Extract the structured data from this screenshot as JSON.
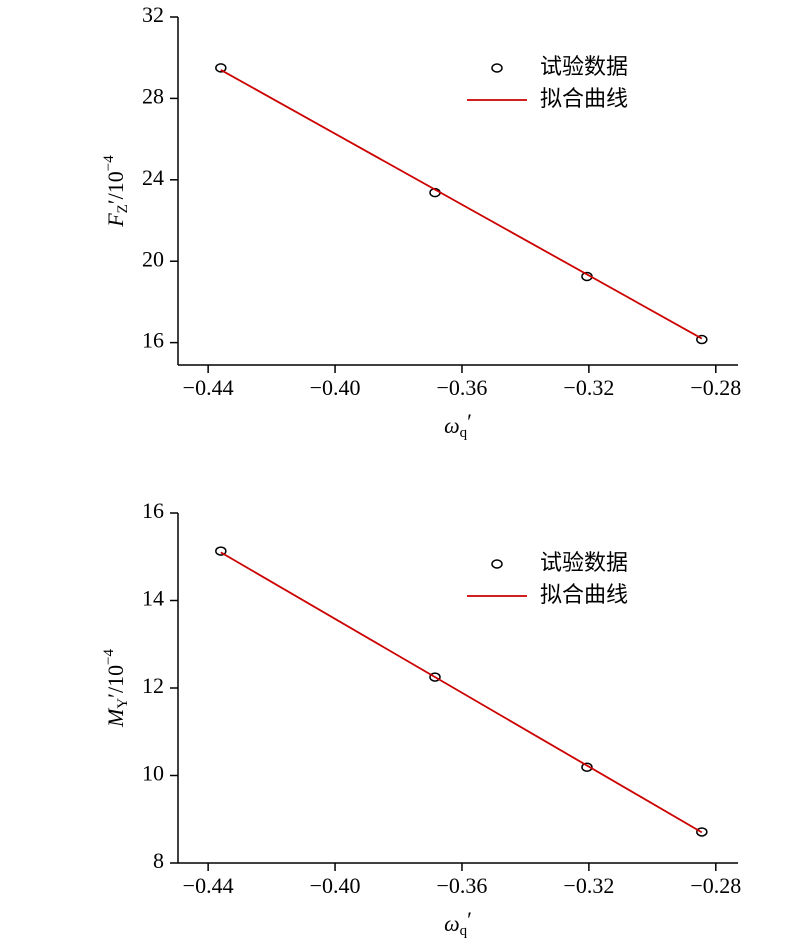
{
  "chart_data": [
    {
      "type": "scatter",
      "xlabel": [
        "ω",
        "q",
        "′"
      ],
      "ylabel": [
        "F",
        "Z",
        "′/10",
        "−4"
      ],
      "xlim": [
        -0.4495,
        -0.273
      ],
      "ylim": [
        14.9,
        32
      ],
      "xticks": [
        {
          "value": -0.44,
          "label": "−0.44"
        },
        {
          "value": -0.4,
          "label": "−0.40"
        },
        {
          "value": -0.36,
          "label": "−0.36"
        },
        {
          "value": -0.32,
          "label": "−0.32"
        },
        {
          "value": -0.28,
          "label": "−0.28"
        }
      ],
      "yticks": [
        16,
        20,
        24,
        28,
        32
      ],
      "series": [
        {
          "name": "试验数据",
          "style": "marker",
          "color": "#000000",
          "x": [
            -0.436,
            -0.3685,
            -0.3206,
            -0.2844
          ],
          "values": [
            29.5,
            23.37,
            19.25,
            16.15
          ]
        },
        {
          "name": "拟合曲线",
          "style": "line",
          "color": "#cc0000",
          "x": [
            -0.436,
            -0.2844
          ],
          "values": [
            29.4,
            16.2
          ]
        }
      ]
    },
    {
      "type": "scatter",
      "xlabel": [
        "ω",
        "q",
        "′"
      ],
      "ylabel": [
        "M",
        "Y",
        "′/10",
        "−4"
      ],
      "xlim": [
        -0.4495,
        -0.273
      ],
      "ylim": [
        8,
        16
      ],
      "xticks": [
        {
          "value": -0.44,
          "label": "−0.44"
        },
        {
          "value": -0.4,
          "label": "−0.40"
        },
        {
          "value": -0.36,
          "label": "−0.36"
        },
        {
          "value": -0.32,
          "label": "−0.32"
        },
        {
          "value": -0.28,
          "label": "−0.28"
        }
      ],
      "yticks": [
        8,
        10,
        12,
        14,
        16
      ],
      "series": [
        {
          "name": "试验数据",
          "style": "marker",
          "color": "#000000",
          "x": [
            -0.436,
            -0.3685,
            -0.3206,
            -0.2844
          ],
          "values": [
            15.13,
            12.25,
            10.19,
            8.71
          ]
        },
        {
          "name": "拟合曲线",
          "style": "line",
          "color": "#cc0000",
          "x": [
            -0.436,
            -0.2844
          ],
          "values": [
            15.1,
            8.7
          ]
        }
      ]
    }
  ]
}
